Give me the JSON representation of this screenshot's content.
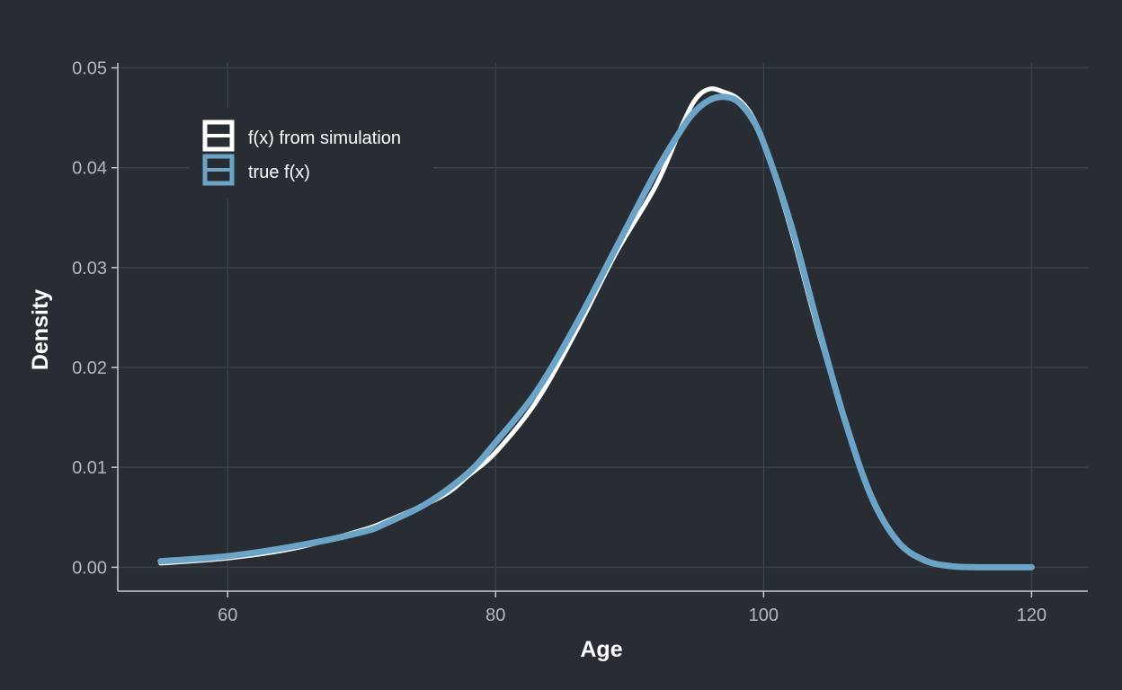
{
  "chart_data": {
    "type": "line",
    "xlabel": "Age",
    "ylabel": "Density",
    "xlim": [
      51.8,
      124.2
    ],
    "ylim": [
      -0.0024,
      0.0505
    ],
    "x_ticks": [
      60,
      80,
      100,
      120
    ],
    "x_tick_labels": [
      "60",
      "80",
      "100",
      "120"
    ],
    "y_ticks": [
      0.0,
      0.01,
      0.02,
      0.03,
      0.04,
      0.05
    ],
    "y_tick_labels": [
      "0.00",
      "0.01",
      "0.02",
      "0.03",
      "0.04",
      "0.05"
    ],
    "grid": true,
    "legend": {
      "position": "top-left"
    },
    "series": [
      {
        "name": "f(x) from simulation",
        "color": "#ffffff",
        "x": [
          55,
          60,
          65,
          70,
          72,
          76,
          78,
          80,
          83,
          86,
          89,
          92,
          94,
          95,
          96,
          97,
          98,
          99,
          100,
          102,
          104,
          106,
          108,
          110,
          112,
          114,
          116,
          118,
          120
        ],
        "y": [
          0.0004,
          0.0009,
          0.0019,
          0.0037,
          0.0047,
          0.0071,
          0.0092,
          0.0115,
          0.0165,
          0.0236,
          0.0315,
          0.0383,
          0.0445,
          0.047,
          0.0479,
          0.0476,
          0.047,
          0.0455,
          0.0425,
          0.034,
          0.024,
          0.015,
          0.007,
          0.0025,
          0.0006,
          0.0001,
          0.0,
          0.0,
          0.0
        ]
      },
      {
        "name": "true f(x)",
        "color": "#6ca4c8",
        "x": [
          55,
          60,
          65,
          70,
          72,
          75,
          78,
          80,
          83,
          86,
          89,
          92,
          94,
          95,
          96,
          97,
          98,
          99,
          100,
          102,
          104,
          106,
          108,
          110,
          112,
          114,
          116,
          118,
          120
        ],
        "y": [
          0.0006,
          0.0011,
          0.0021,
          0.0035,
          0.0045,
          0.0065,
          0.0095,
          0.0125,
          0.0175,
          0.0243,
          0.032,
          0.0397,
          0.0441,
          0.0458,
          0.0468,
          0.0471,
          0.0467,
          0.0452,
          0.0425,
          0.0345,
          0.0245,
          0.015,
          0.0072,
          0.0026,
          0.0007,
          0.0001,
          0.0,
          0.0,
          0.0
        ]
      }
    ]
  }
}
